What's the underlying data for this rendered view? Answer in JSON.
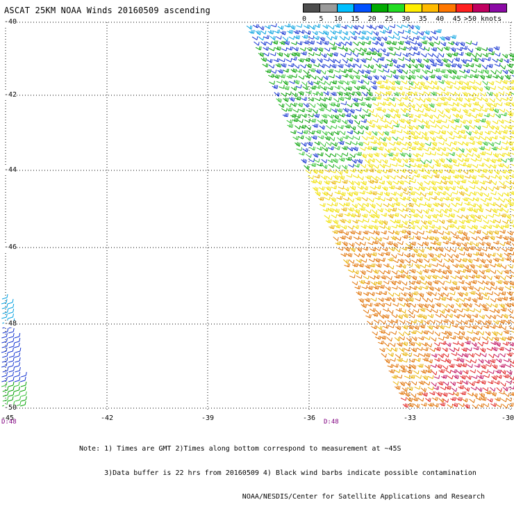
{
  "title": "ASCAT 25KM NOAA Winds 20160509 ascending",
  "legend": {
    "bins": [
      {
        "label": "0",
        "color": "#4d4d4d"
      },
      {
        "label": "5",
        "color": "#9a9a9a"
      },
      {
        "label": "10",
        "color": "#00bfff"
      },
      {
        "label": "15",
        "color": "#0050ff"
      },
      {
        "label": "20",
        "color": "#00aa00"
      },
      {
        "label": "25",
        "color": "#22dd22"
      },
      {
        "label": "30",
        "color": "#ffee00"
      },
      {
        "label": "35",
        "color": "#ffbb00"
      },
      {
        "label": "40",
        "color": "#ff7700"
      },
      {
        "label": "45",
        "color": "#ff2020"
      },
      {
        "label": ">50 knots",
        "color": "#c00060"
      }
    ],
    "extra_colors": [
      "#8b0aa5",
      "#4b0082"
    ]
  },
  "map": {
    "lat_labels": [
      "-40",
      "-42",
      "-44",
      "-46",
      "-48",
      "-50"
    ],
    "lon_labels": [
      "-45",
      "-42",
      "-39",
      "-36",
      "-33",
      "-30"
    ],
    "time_labels": [
      "D:48",
      "D:48"
    ]
  },
  "notes": [
    "Note: 1) Times are GMT 2)Times along bottom correspond to measurement at ~45S",
    "      3)Data buffer is 22 hrs from 20160509 4) Black wind barbs indicate possible contamination",
    "                                       NOAA/NESDIS/Center for Satellite Applications and Research"
  ],
  "swath_colors": {
    "light_blue": "#00a0e0",
    "blue": "#1030d0",
    "green": "#00a000",
    "light_green": "#30c030",
    "yellow": "#f0e000",
    "gold": "#e8b000",
    "orange": "#e07000",
    "red": "#e02020",
    "magenta": "#c01060",
    "dark_green": "#006000"
  }
}
